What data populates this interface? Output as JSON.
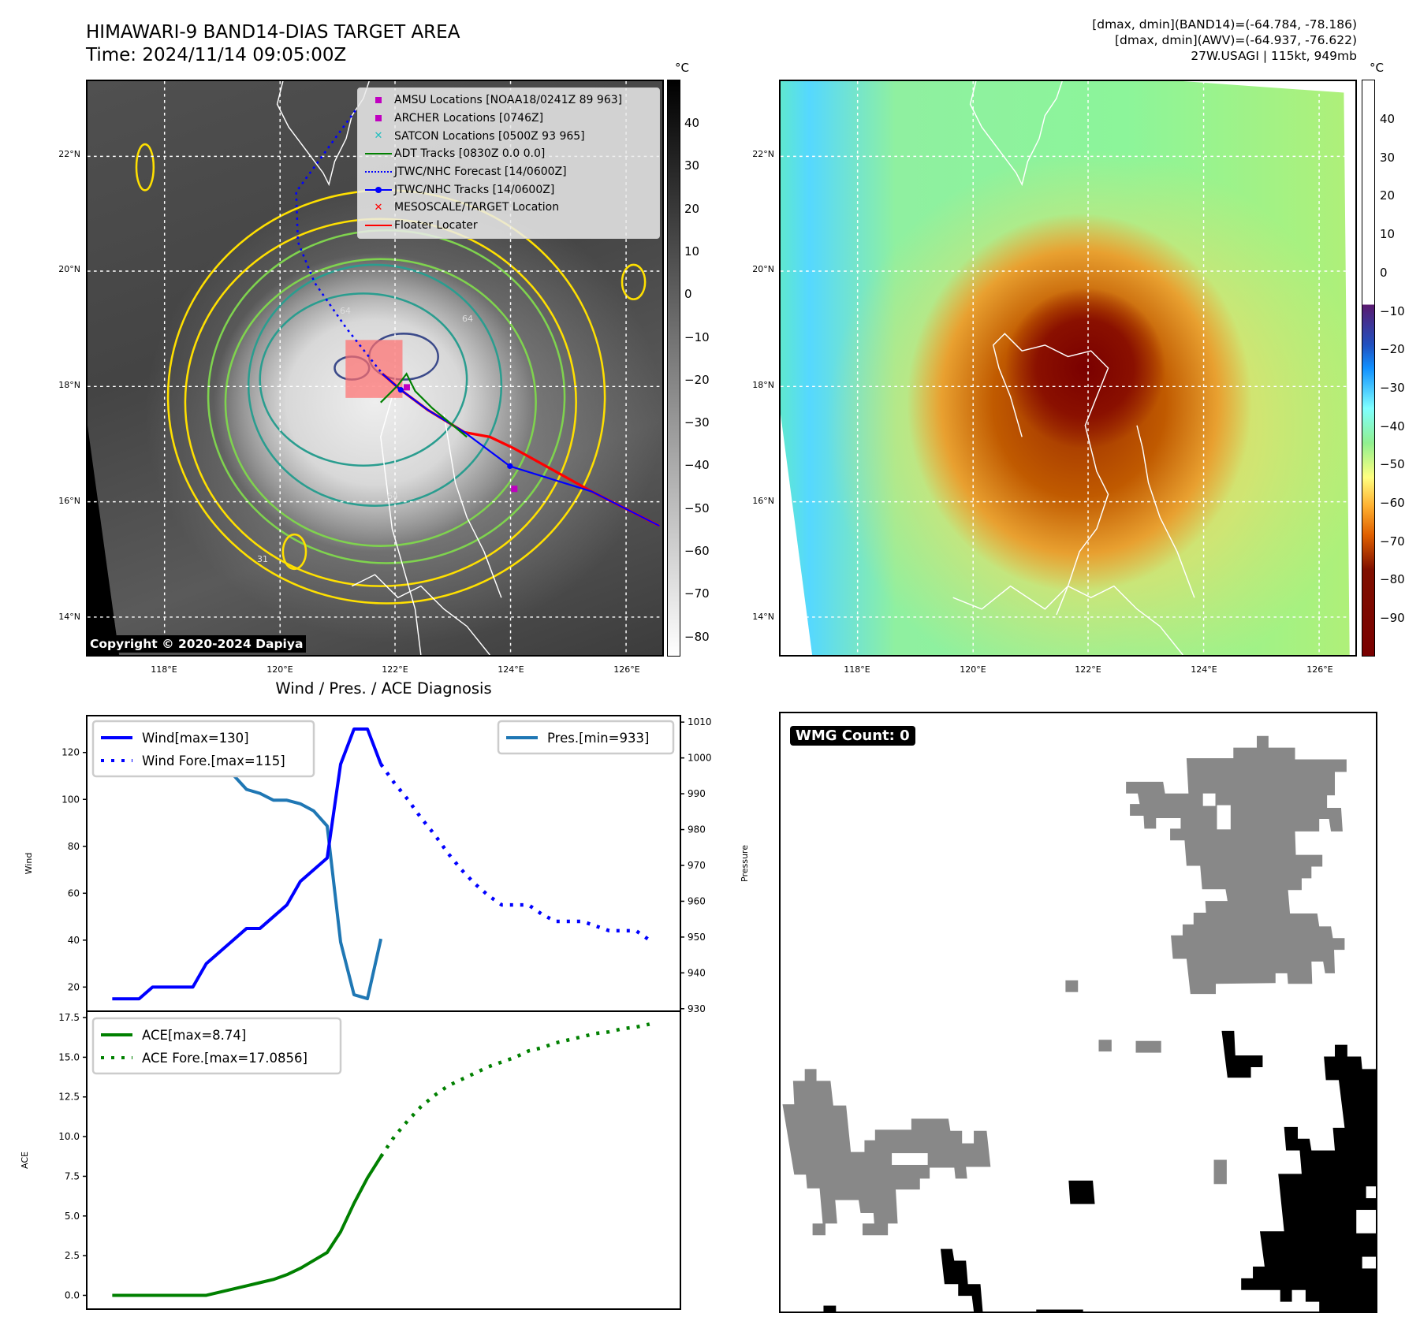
{
  "header": {
    "title_line1": "HIMAWARI-9 BAND14-DIAS TARGET AREA",
    "title_line2": "Time: 2024/11/14 09:05:00Z",
    "annot_line1": "[dmax, dmin](BAND14)=(-64.784, -78.186)",
    "annot_line2": "[dmax, dmin](AWV)=(-64.937, -76.622)",
    "annot_line3": "27W.USAGI | 115kt, 949mb"
  },
  "maps": {
    "lat_labels": [
      "22°N",
      "20°N",
      "18°N",
      "16°N",
      "14°N"
    ],
    "lon_labels": [
      "118°E",
      "120°E",
      "122°E",
      "124°E",
      "126°E"
    ],
    "copyright": "Copyright © 2020-2024 Dapiya",
    "contour_labels": [
      "64",
      "64",
      "64",
      "31"
    ],
    "legend": [
      {
        "label": "AMSU Locations [NOAA18/0241Z 89 963]",
        "color": "#c000c0",
        "symbol": "square"
      },
      {
        "label": "ARCHER Locations [0746Z]",
        "color": "#c000c0",
        "symbol": "square"
      },
      {
        "label": "SATCON Locations [0500Z 93 965]",
        "color": "#1fbfbf",
        "symbol": "x"
      },
      {
        "label": "ADT Tracks [0830Z 0.0 0.0]",
        "color": "#008000",
        "symbol": "line"
      },
      {
        "label": "JTWC/NHC Forecast [14/0600Z]",
        "color": "#0000ff",
        "symbol": "dotted"
      },
      {
        "label": "JTWC/NHC Tracks [14/0600Z]",
        "color": "#0000ff",
        "symbol": "line-dot"
      },
      {
        "label": "MESOSCALE/TARGET Location",
        "color": "#ff0000",
        "symbol": "x"
      },
      {
        "label": "Floater Locater",
        "color": "#ff0000",
        "symbol": "line"
      }
    ],
    "left_colorbar": {
      "unit": "°C",
      "ticks": [
        "40",
        "30",
        "20",
        "10",
        "0",
        "−10",
        "−20",
        "−30",
        "−40",
        "−50",
        "−60",
        "−70",
        "−80"
      ]
    },
    "right_colorbar": {
      "unit": "°C",
      "ticks": [
        "40",
        "30",
        "20",
        "10",
        "0",
        "−10",
        "−20",
        "−30",
        "−40",
        "−50",
        "−60",
        "−70",
        "−80",
        "−90"
      ]
    }
  },
  "chart_data": [
    {
      "type": "line",
      "title": "Wind / Pres. / ACE Diagnosis",
      "ylabel": "Wind",
      "y2label": "Pressure",
      "xlim": [
        -1.9,
        42.3
      ],
      "ylim": [
        9.7,
        135.7
      ],
      "y2lim": [
        929.3,
        1011.8
      ],
      "yticks": [
        20,
        40,
        60,
        80,
        100,
        120
      ],
      "y2ticks": [
        930,
        940,
        950,
        960,
        970,
        980,
        990,
        1000,
        1010
      ],
      "series": [
        {
          "name": "Wind[max=130]",
          "axis": "left",
          "style": "solid",
          "color": "#0000ff",
          "x": [
            0,
            1,
            2,
            3,
            4,
            5,
            6,
            7,
            8,
            9,
            10,
            11,
            12,
            13,
            14,
            15,
            16,
            17,
            18,
            19,
            20
          ],
          "values": [
            15,
            15,
            15,
            20,
            20,
            20,
            20,
            30,
            35,
            40,
            45,
            45,
            50,
            55,
            65,
            70,
            75,
            115,
            130,
            130,
            115
          ]
        },
        {
          "name": "Wind Fore.[max=115]",
          "axis": "left",
          "style": "dotted",
          "color": "#0000ff",
          "x": [
            20,
            21,
            22,
            23,
            24,
            25,
            26,
            27,
            28,
            29,
            30,
            31,
            32,
            33,
            34,
            35,
            36,
            37,
            38,
            39,
            40
          ],
          "values": [
            115,
            107,
            100,
            92,
            85,
            77,
            70,
            64,
            59,
            55,
            55,
            55,
            51,
            48,
            48,
            48,
            46,
            44,
            44,
            44,
            40
          ]
        },
        {
          "name": "Pres.[min=933]",
          "axis": "right",
          "style": "solid",
          "color": "#1f77b4",
          "x": [
            0,
            1,
            2,
            3,
            4,
            5,
            6,
            7,
            8,
            9,
            10,
            11,
            12,
            13,
            14,
            15,
            16,
            17,
            18,
            19,
            20
          ],
          "values": [
            1008,
            1008,
            1007,
            1007,
            1005,
            1005,
            1004,
            998.6,
            996.9,
            995.3,
            991.2,
            990.1,
            988.2,
            988.2,
            987.2,
            985.2,
            981,
            948.6,
            933.9,
            932.8,
            949.5
          ]
        }
      ],
      "legend_left": "upper-left",
      "legend_right": "upper-right"
    },
    {
      "type": "line",
      "ylabel": "ACE",
      "xlim": [
        -1.9,
        42.3
      ],
      "ylim": [
        -0.87,
        17.9
      ],
      "yticks": [
        "0.0",
        "2.5",
        "5.0",
        "7.5",
        "10.0",
        "12.5",
        "15.0",
        "17.5"
      ],
      "series": [
        {
          "name": "ACE[max=8.74]",
          "style": "solid",
          "color": "#008000",
          "x": [
            0,
            1,
            2,
            3,
            4,
            5,
            6,
            7,
            8,
            9,
            10,
            11,
            12,
            13,
            14,
            15,
            16,
            17,
            18,
            19,
            20
          ],
          "values": [
            0,
            0,
            0,
            0,
            0,
            0,
            0,
            0,
            0.2,
            0.4,
            0.6,
            0.8,
            1.0,
            1.3,
            1.7,
            2.2,
            2.7,
            4.0,
            5.8,
            7.4,
            8.74
          ]
        },
        {
          "name": "ACE Fore.[max=17.0856]",
          "style": "dotted",
          "color": "#008000",
          "x": [
            20,
            21,
            22,
            23,
            24,
            25,
            26,
            27,
            28,
            29,
            30,
            31,
            32,
            33,
            34,
            35,
            36,
            37,
            38,
            39,
            40
          ],
          "values": [
            8.74,
            10.0,
            11.0,
            11.9,
            12.6,
            13.2,
            13.6,
            14.0,
            14.4,
            14.7,
            15.0,
            15.4,
            15.6,
            15.9,
            16.1,
            16.3,
            16.5,
            16.6,
            16.8,
            16.9,
            17.0856
          ]
        }
      ],
      "legend": "upper-left"
    }
  ],
  "wmg": {
    "label": "WMG Count: 0"
  }
}
